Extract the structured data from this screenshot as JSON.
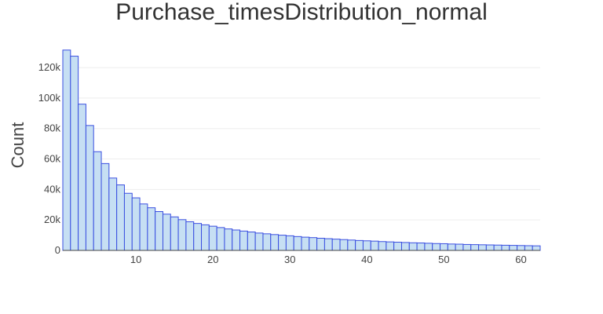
{
  "chart_data": {
    "type": "bar",
    "title": "Purchase_timesDistribution_normal",
    "xlabel": "",
    "ylabel": "Count",
    "xlim": [
      0.5,
      62.5
    ],
    "ylim": [
      0,
      135000
    ],
    "xticks": [
      10,
      20,
      30,
      40,
      50,
      60
    ],
    "xtick_labels": [
      "10",
      "20",
      "30",
      "40",
      "50",
      "60"
    ],
    "yticks": [
      0,
      20000,
      40000,
      60000,
      80000,
      100000,
      120000
    ],
    "ytick_labels": [
      "0",
      "20k",
      "40k",
      "60k",
      "80k",
      "100k",
      "120k"
    ],
    "grid": true,
    "colors": {
      "bar_fill": "#c6dff3",
      "bar_stroke": "#3a4fe0"
    },
    "x": [
      1,
      2,
      3,
      4,
      5,
      6,
      7,
      8,
      9,
      10,
      11,
      12,
      13,
      14,
      15,
      16,
      17,
      18,
      19,
      20,
      21,
      22,
      23,
      24,
      25,
      26,
      27,
      28,
      29,
      30,
      31,
      32,
      33,
      34,
      35,
      36,
      37,
      38,
      39,
      40,
      41,
      42,
      43,
      44,
      45,
      46,
      47,
      48,
      49,
      50,
      51,
      52,
      53,
      54,
      55,
      56,
      57,
      58,
      59,
      60,
      61,
      62
    ],
    "values": [
      131500,
      127500,
      96000,
      82000,
      64800,
      57000,
      47500,
      43000,
      37500,
      34500,
      30500,
      28000,
      25500,
      23800,
      22000,
      20200,
      18800,
      17700,
      16800,
      15900,
      15000,
      14100,
      13400,
      12700,
      12100,
      11400,
      10900,
      10400,
      10000,
      9600,
      9100,
      8700,
      8400,
      8000,
      7700,
      7400,
      7100,
      6800,
      6500,
      6300,
      6100,
      5800,
      5600,
      5400,
      5200,
      5000,
      4900,
      4700,
      4500,
      4400,
      4200,
      4100,
      3900,
      3800,
      3700,
      3600,
      3500,
      3400,
      3300,
      3200,
      3100,
      3000
    ]
  }
}
